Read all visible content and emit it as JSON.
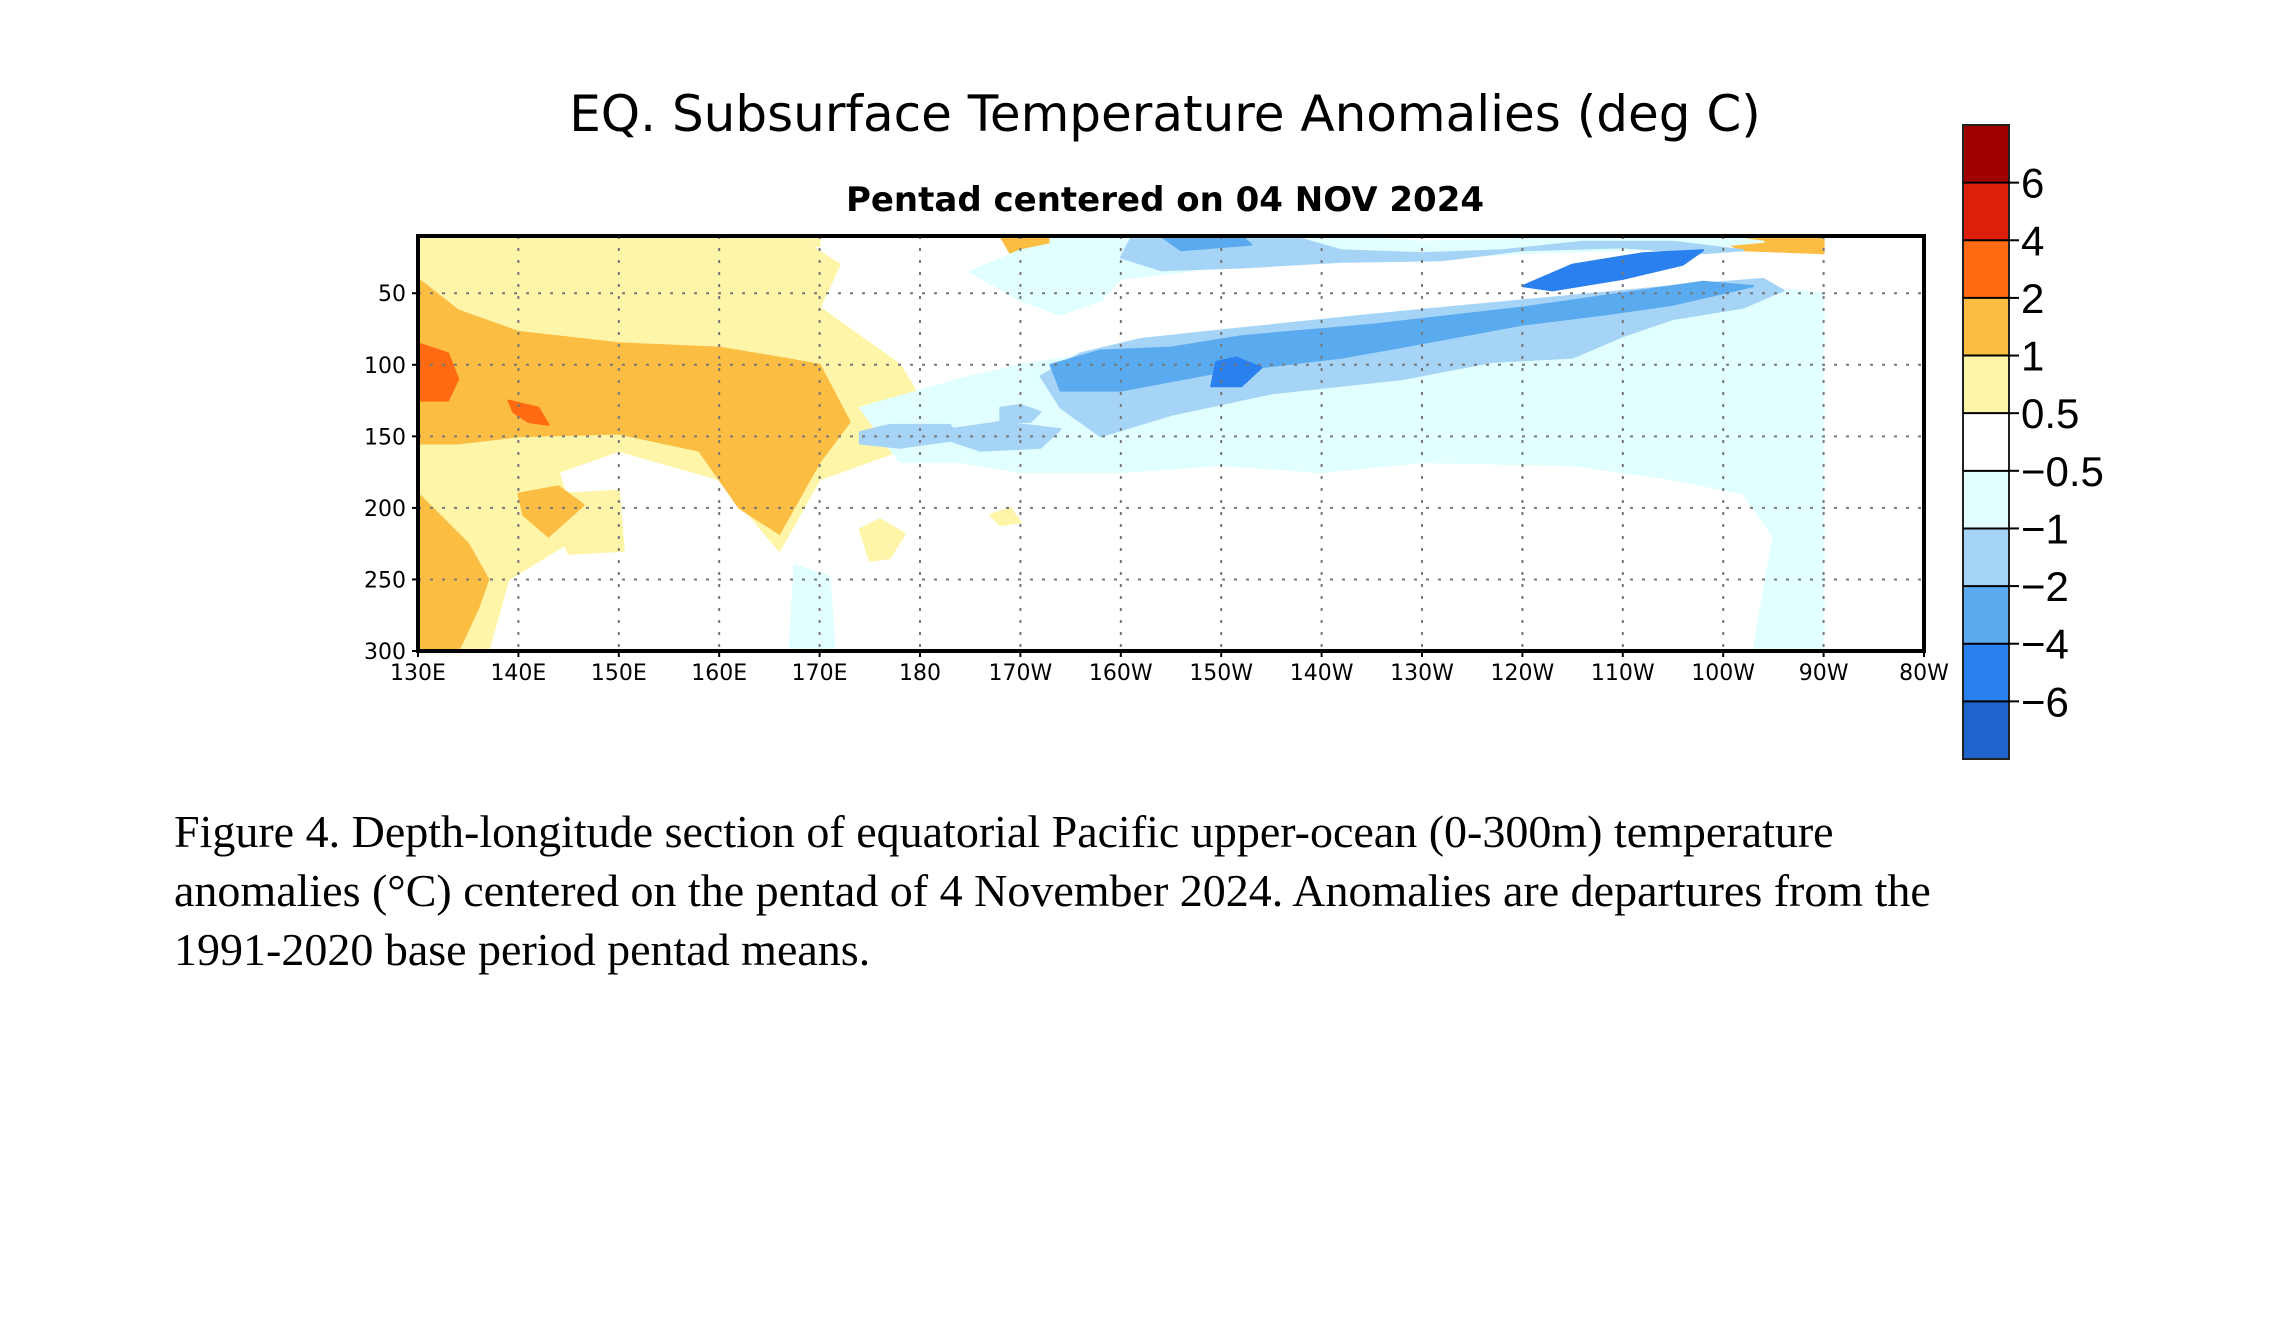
{
  "chart_data": {
    "type": "heatmap",
    "title": "EQ. Subsurface Temperature Anomalies (deg C)",
    "subtitle": "Pentad centered on 04 NOV 2024",
    "x_axis": {
      "ticks": [
        "130E",
        "140E",
        "150E",
        "160E",
        "170E",
        "180",
        "170W",
        "160W",
        "150W",
        "140W",
        "130W",
        "120W",
        "110W",
        "100W",
        "90W",
        "80W"
      ],
      "range": [
        "130E",
        "80W"
      ]
    },
    "y_axis": {
      "ticks": [
        "50",
        "100",
        "150",
        "200",
        "250",
        "300"
      ],
      "range": [
        10,
        300
      ],
      "inverted": true
    },
    "grid": true,
    "colorbar": {
      "placement": "right",
      "labels": [
        "6",
        "4",
        "2",
        "1",
        "0.5",
        "−0.5",
        "−1",
        "−2",
        "−4",
        "−6"
      ],
      "colors": [
        "#a10000",
        "#dc1f0a",
        "#ff6a13",
        "#fbbd42",
        "#fff5a8",
        "#ffffff",
        "#e1ffff",
        "#a6d4f7",
        "#5aaaf0",
        "#2a80ee",
        "#1f63cd"
      ]
    },
    "regions": [
      {
        "level": 0.5,
        "color": "#fff5a8",
        "points": [
          [
            130,
            12
          ],
          [
            168,
            12
          ],
          [
            172,
            30
          ],
          [
            170,
            60
          ],
          [
            178,
            100
          ],
          [
            181,
            135
          ],
          [
            178,
            160
          ],
          [
            170,
            180
          ],
          [
            166,
            230
          ],
          [
            160,
            180
          ],
          [
            150,
            160
          ],
          [
            144,
            175
          ],
          [
            146,
            220
          ],
          [
            139,
            250
          ],
          [
            137,
            300
          ],
          [
            130,
            300
          ]
        ]
      },
      {
        "level": 0.5,
        "color": "#fff5a8",
        "points": [
          [
            144.5,
            190
          ],
          [
            150,
            188
          ],
          [
            150.5,
            230
          ],
          [
            145,
            232
          ],
          [
            144,
            215
          ]
        ]
      },
      {
        "level": 0.5,
        "color": "#fff5a8",
        "points": [
          [
            152,
            10
          ],
          [
            170,
            10
          ],
          [
            170,
            17
          ],
          [
            152,
            17
          ]
        ]
      },
      {
        "level": 0.5,
        "color": "#fff5a8",
        "points": [
          [
            174,
            215
          ],
          [
            176,
            208
          ],
          [
            178.5,
            218
          ],
          [
            177,
            235
          ],
          [
            175,
            237
          ]
        ]
      },
      {
        "level": 0.5,
        "color": "#fff5a8",
        "points": [
          [
            187,
            205
          ],
          [
            189,
            200
          ],
          [
            190,
            210
          ],
          [
            188,
            212
          ]
        ]
      },
      {
        "level": 0.5,
        "color": "#fff5a8",
        "points": [
          [
            134,
            75
          ],
          [
            140,
            82
          ],
          [
            150,
            88
          ],
          [
            160,
            85
          ],
          [
            165,
            80
          ],
          [
            166,
            88
          ],
          [
            160,
            95
          ],
          [
            150,
            98
          ],
          [
            140,
            95
          ],
          [
            134,
            88
          ]
        ]
      },
      {
        "level": 1,
        "color": "#fbbd42",
        "points": [
          [
            130,
            40
          ],
          [
            134,
            62
          ],
          [
            140,
            77
          ],
          [
            150,
            85
          ],
          [
            160,
            88
          ],
          [
            166,
            95
          ],
          [
            170,
            100
          ],
          [
            173,
            140
          ],
          [
            170,
            168
          ],
          [
            166,
            218
          ],
          [
            162,
            200
          ],
          [
            158,
            160
          ],
          [
            150,
            148
          ],
          [
            140,
            150
          ],
          [
            134,
            155
          ],
          [
            130,
            155
          ]
        ]
      },
      {
        "level": 1,
        "color": "#fbbd42",
        "points": [
          [
            130,
            190
          ],
          [
            135,
            225
          ],
          [
            137,
            250
          ],
          [
            136,
            270
          ],
          [
            134,
            300
          ],
          [
            130,
            300
          ]
        ]
      },
      {
        "level": 1,
        "color": "#fbbd42",
        "points": [
          [
            140,
            190
          ],
          [
            144,
            185
          ],
          [
            146.5,
            198
          ],
          [
            143,
            220
          ],
          [
            140.5,
            205
          ]
        ]
      },
      {
        "level": 1,
        "color": "#fbbd42",
        "points": [
          [
            188,
            10
          ],
          [
            193,
            10
          ],
          [
            193,
            20
          ],
          [
            189,
            22
          ]
        ]
      },
      {
        "level": 1,
        "color": "#fbbd42",
        "points": [
          [
            258.5,
            10
          ],
          [
            270,
            10
          ],
          [
            270,
            22
          ],
          [
            262,
            20
          ]
        ]
      },
      {
        "level": 2,
        "color": "#ff6a13",
        "points": [
          [
            130,
            85
          ],
          [
            133,
            92
          ],
          [
            134,
            110
          ],
          [
            133,
            125
          ],
          [
            130,
            125
          ]
        ]
      },
      {
        "level": 2,
        "color": "#ff6a13",
        "points": [
          [
            139,
            125
          ],
          [
            142,
            130
          ],
          [
            143,
            142
          ],
          [
            141,
            140
          ],
          [
            139.5,
            133
          ]
        ]
      },
      {
        "level": -0.5,
        "color": "#e1ffff",
        "points": [
          [
            174,
            130
          ],
          [
            179,
            120
          ],
          [
            184,
            110
          ],
          [
            190,
            100
          ],
          [
            200,
            90
          ],
          [
            210,
            80
          ],
          [
            220,
            72
          ],
          [
            240,
            60
          ],
          [
            260,
            50
          ],
          [
            267,
            48
          ],
          [
            270,
            50
          ],
          [
            270,
            300
          ],
          [
            263,
            300
          ],
          [
            265,
            220
          ],
          [
            262,
            190
          ],
          [
            255,
            180
          ],
          [
            245,
            170
          ],
          [
            230,
            168
          ],
          [
            220,
            175
          ],
          [
            210,
            170
          ],
          [
            200,
            175
          ],
          [
            190,
            175
          ],
          [
            184,
            168
          ],
          [
            178,
            168
          ]
        ]
      },
      {
        "level": -0.5,
        "color": "#e1ffff",
        "points": [
          [
            197,
            10
          ],
          [
            222,
            10
          ],
          [
            230,
            14
          ],
          [
            250,
            10
          ],
          [
            260,
            10
          ],
          [
            264,
            14
          ],
          [
            258,
            18
          ],
          [
            240,
            22
          ],
          [
            230,
            26
          ],
          [
            222,
            24
          ],
          [
            212,
            30
          ],
          [
            200,
            40
          ],
          [
            198,
            55
          ],
          [
            194,
            65
          ],
          [
            190,
            55
          ],
          [
            185,
            35
          ],
          [
            190,
            20
          ]
        ]
      },
      {
        "level": -0.5,
        "color": "#e1ffff",
        "points": [
          [
            167.5,
            240
          ],
          [
            171,
            248
          ],
          [
            171.5,
            300
          ],
          [
            167,
            300
          ]
        ]
      },
      {
        "level": -0.5,
        "color": "#e1ffff",
        "points": [
          [
            193,
            10
          ],
          [
            197,
            10
          ],
          [
            197,
            40
          ],
          [
            195,
            60
          ],
          [
            193,
            40
          ]
        ]
      },
      {
        "level": -1,
        "color": "#a6d4f7",
        "points": [
          [
            192,
            108
          ],
          [
            196,
            92
          ],
          [
            202,
            82
          ],
          [
            210,
            76
          ],
          [
            225,
            65
          ],
          [
            240,
            55
          ],
          [
            255,
            45
          ],
          [
            264,
            40
          ],
          [
            266,
            48
          ],
          [
            262,
            60
          ],
          [
            255,
            68
          ],
          [
            250,
            80
          ],
          [
            245,
            95
          ],
          [
            237,
            98
          ],
          [
            228,
            110
          ],
          [
            215,
            120
          ],
          [
            205,
            135
          ],
          [
            198,
            150
          ],
          [
            194,
            130
          ]
        ]
      },
      {
        "level": -1,
        "color": "#a6d4f7",
        "points": [
          [
            201,
            12
          ],
          [
            218,
            12
          ],
          [
            222,
            20
          ],
          [
            230,
            22
          ],
          [
            238,
            20
          ],
          [
            246,
            14
          ],
          [
            255,
            14
          ],
          [
            262,
            20
          ],
          [
            258,
            22
          ],
          [
            250,
            18
          ],
          [
            240,
            20
          ],
          [
            232,
            27
          ],
          [
            222,
            28
          ],
          [
            212,
            32
          ],
          [
            204,
            34
          ],
          [
            200,
            25
          ]
        ]
      },
      {
        "level": -1,
        "color": "#a6d4f7",
        "points": [
          [
            183,
            145
          ],
          [
            188,
            140
          ],
          [
            194,
            145
          ],
          [
            192,
            158
          ],
          [
            186,
            160
          ],
          [
            183,
            153
          ]
        ]
      },
      {
        "level": -1,
        "color": "#a6d4f7",
        "points": [
          [
            174,
            147
          ],
          [
            177,
            142
          ],
          [
            183,
            142
          ],
          [
            184,
            152
          ],
          [
            178,
            158
          ],
          [
            174,
            155
          ]
        ]
      },
      {
        "level": -1,
        "color": "#a6d4f7",
        "points": [
          [
            188,
            130
          ],
          [
            190,
            128
          ],
          [
            192,
            133
          ],
          [
            191,
            140
          ],
          [
            188,
            140
          ]
        ]
      },
      {
        "level": -2,
        "color": "#5aaaf0",
        "points": [
          [
            193,
            100
          ],
          [
            198,
            90
          ],
          [
            205,
            88
          ],
          [
            212,
            80
          ],
          [
            225,
            72
          ],
          [
            240,
            60
          ],
          [
            250,
            50
          ],
          [
            258,
            42
          ],
          [
            263,
            45
          ],
          [
            260,
            50
          ],
          [
            255,
            58
          ],
          [
            248,
            65
          ],
          [
            240,
            72
          ],
          [
            230,
            85
          ],
          [
            222,
            95
          ],
          [
            210,
            105
          ],
          [
            200,
            118
          ],
          [
            194,
            118
          ]
        ]
      },
      {
        "level": -2,
        "color": "#5aaaf0",
        "points": [
          [
            204,
            10
          ],
          [
            212,
            10
          ],
          [
            213,
            16
          ],
          [
            206,
            20
          ]
        ]
      },
      {
        "level": -4,
        "color": "#2a80ee",
        "points": [
          [
            240,
            45
          ],
          [
            245,
            30
          ],
          [
            252,
            22
          ],
          [
            258,
            20
          ],
          [
            256,
            30
          ],
          [
            250,
            40
          ],
          [
            243,
            48
          ]
        ]
      },
      {
        "level": -4,
        "color": "#2a80ee",
        "points": [
          [
            209.5,
            98
          ],
          [
            211.5,
            95
          ],
          [
            214,
            102
          ],
          [
            212,
            115
          ],
          [
            209,
            115
          ]
        ]
      }
    ]
  },
  "caption": {
    "lines": [
      "Figure 4. Depth-longitude section of equatorial Pacific upper-ocean (0-300m) temperature",
      "anomalies (°C) centered on the pentad of 4 November 2024. Anomalies are departures from the",
      "1991-2020 base period pentad means."
    ]
  }
}
